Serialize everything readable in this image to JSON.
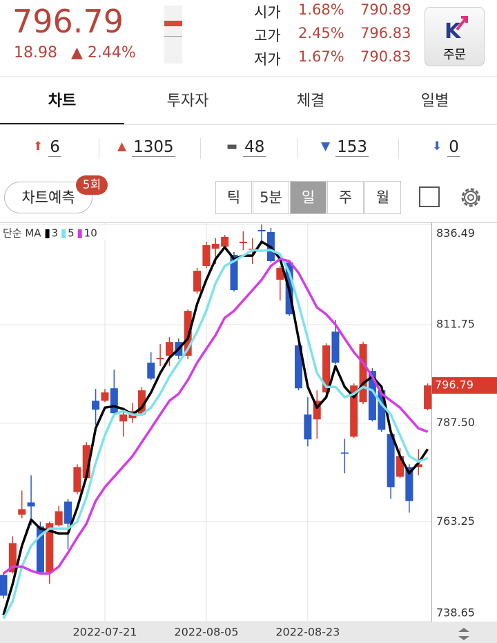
{
  "header": {
    "price": "796.79",
    "change": "18.98",
    "change_pct": "▲ 2.44%",
    "quotes": [
      {
        "label": "시가",
        "pct": "1.68%",
        "value": "790.89"
      },
      {
        "label": "고가",
        "pct": "2.45%",
        "value": "796.83"
      },
      {
        "label": "저가",
        "pct": "1.67%",
        "value": "790.83"
      }
    ],
    "order_button": "주문"
  },
  "tabs": [
    "차트",
    "투자자",
    "체결",
    "일별"
  ],
  "counts": [
    "6",
    "1305",
    "48",
    "153",
    "0"
  ],
  "chart_controls": {
    "predict": "차트예측",
    "predict_badge": "5회",
    "periods": [
      "틱",
      "5분",
      "일",
      "주",
      "월"
    ]
  },
  "chart_data": {
    "type": "candlestick",
    "legend_title": "단순 MA",
    "categories": [
      null,
      null,
      null,
      null,
      null,
      null,
      null,
      null,
      null,
      null,
      null,
      "2022-07-21",
      null,
      null,
      null,
      null,
      null,
      null,
      null,
      null,
      null,
      null,
      "2022-08-05",
      null,
      null,
      null,
      null,
      null,
      null,
      null,
      null,
      null,
      null,
      "2022-08-23",
      null,
      null,
      null,
      null,
      null,
      null,
      null,
      null,
      null,
      null,
      null,
      null,
      null
    ],
    "open": [
      750.14,
      750.82,
      764.95,
      767.99,
      762.05,
      750.82,
      762.39,
      768.18,
      770.56,
      773.97,
      793.03,
      793.03,
      796.09,
      787.92,
      788.77,
      789.62,
      802.39,
      803.24,
      804.09,
      807.49,
      804.09,
      819.91,
      826.21,
      830.46,
      830.98,
      828.93,
      831.83,
      830.3,
      835.06,
      834.55,
      822.81,
      827.06,
      806.64,
      789.62,
      788.43,
      795.07,
      810.04,
      780.26,
      784.18,
      792.69,
      800.35,
      795.58,
      784.86,
      774.31,
      776.69,
      776.69,
      790.99
    ],
    "high": [
      750.82,
      759.67,
      770.9,
      774.65,
      763.24,
      763.24,
      767.16,
      768.86,
      777.37,
      782.81,
      795.92,
      795.92,
      800.68,
      791.32,
      792.51,
      796.43,
      804.94,
      806.98,
      808.68,
      808.34,
      815.49,
      825.7,
      832.17,
      833.02,
      833.87,
      829.62,
      834.72,
      833.02,
      836.42,
      835.57,
      826.21,
      827.4,
      806.98,
      793.88,
      795.58,
      807.15,
      812.94,
      783.67,
      797.28,
      807.49,
      801.03,
      796.43,
      785.37,
      781.45,
      777.37,
      781.11,
      797.28
    ],
    "low": [
      744.35,
      750.48,
      764.1,
      762.39,
      750.48,
      747.93,
      762.05,
      756.44,
      770.05,
      773.46,
      787.07,
      792.69,
      789.62,
      784.18,
      787.58,
      789.27,
      798.13,
      801.53,
      801.53,
      803.24,
      803.24,
      819.4,
      825.7,
      826.72,
      830.46,
      819.91,
      830.12,
      826.72,
      831.83,
      827.06,
      817.7,
      813.96,
      795.58,
      781.79,
      783.67,
      794.73,
      802.05,
      775.16,
      783.84,
      792.18,
      787.92,
      785.37,
      768.86,
      773.97,
      765.46,
      774.65,
      790.65
    ],
    "close": [
      745.03,
      757.97,
      766.31,
      766.99,
      750.82,
      762.9,
      765.8,
      762.73,
      776.69,
      782.13,
      790.82,
      795.07,
      789.96,
      789.62,
      790.48,
      795.58,
      798.47,
      803.58,
      807.49,
      804.09,
      815.15,
      825.02,
      831.32,
      831.66,
      833.36,
      820.26,
      832.17,
      830.46,
      834.72,
      827.4,
      825.7,
      814.3,
      796.09,
      783.5,
      793.03,
      806.64,
      802.39,
      780.09,
      796.77,
      806.98,
      788.26,
      785.88,
      771.75,
      779.41,
      768.35,
      777.37,
      796.79
    ],
    "up_color": "#d83a2e",
    "down_color": "#2a5bc7",
    "series": [
      {
        "name": "3",
        "color": "#000000",
        "values": [
          740.27,
          747.93,
          757.29,
          763.75,
          761.54,
          761.03,
          760.35,
          760.35,
          766.65,
          774.31,
          786.22,
          791.32,
          791.66,
          790.98,
          789.62,
          791.32,
          795.07,
          799.83,
          803.58,
          805.79,
          808.34,
          816.85,
          822.81,
          827.91,
          830.81,
          827.91,
          828.76,
          828.76,
          832.17,
          830.81,
          827.91,
          820.25,
          808.34,
          796.43,
          791.32,
          793.88,
          801.53,
          796.43,
          793.88,
          797.28,
          798.98,
          796.43,
          785.37,
          779.41,
          775.16,
          777.71,
          781.11
        ]
      },
      {
        "name": "5",
        "color": "#7de3ea",
        "values": [
          739.42,
          743.67,
          752.18,
          757.29,
          759.84,
          761.54,
          761.54,
          761.54,
          763.24,
          769.2,
          777.71,
          784.52,
          789.62,
          790.48,
          789.62,
          789.62,
          791.32,
          794.73,
          798.98,
          802.39,
          805.79,
          810.04,
          815.15,
          821.96,
          826.21,
          827.4,
          828.76,
          830.12,
          829.95,
          830.12,
          829.1,
          824.51,
          816.85,
          808.34,
          799.83,
          796.43,
          796.43,
          793.88,
          794.73,
          796.43,
          795.58,
          792.17,
          789.62,
          784.52,
          779.41,
          778.05,
          778.9
        ]
      },
      {
        "name": "10",
        "color": "#d63be8",
        "values": [
          750.48,
          752.18,
          752.18,
          751.16,
          750.48,
          750.48,
          752.18,
          755.59,
          759.33,
          762.73,
          768.35,
          771.75,
          774.31,
          776.86,
          779.41,
          782.81,
          786.22,
          789.62,
          793.03,
          794.73,
          798.13,
          802.39,
          805.79,
          809.19,
          813.45,
          815.15,
          817.7,
          820.25,
          822.81,
          826.21,
          827.91,
          827.4,
          824.51,
          820.25,
          816.0,
          814.3,
          811.75,
          808.34,
          804.94,
          802.39,
          798.98,
          794.73,
          793.03,
          791.32,
          788.77,
          786.22,
          785.37
        ]
      }
    ],
    "ylim": [
      738.65,
      836.49
    ],
    "yticks": [
      738.65,
      763.25,
      {
        "value": 787.5,
        "label": "787.50"
      },
      811.75,
      836.49
    ],
    "grid": true
  }
}
